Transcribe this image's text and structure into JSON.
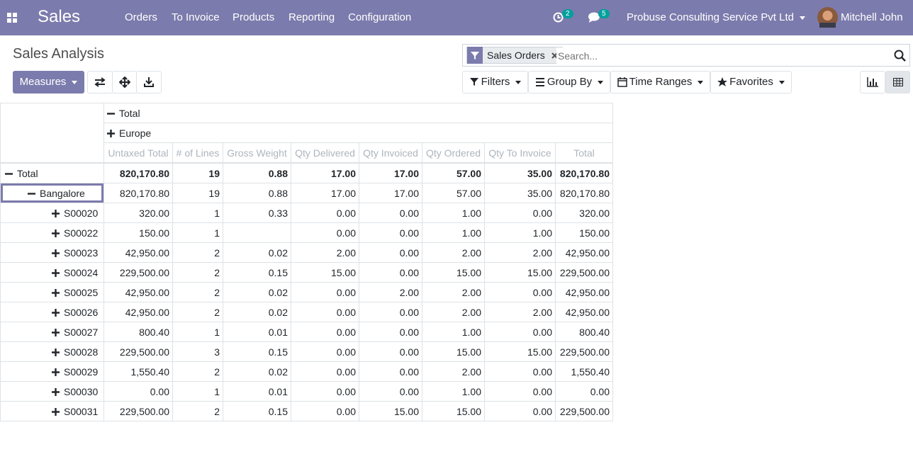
{
  "navbar": {
    "app": "Sales",
    "menu": [
      "Orders",
      "To Invoice",
      "Products",
      "Reporting",
      "Configuration"
    ],
    "activity_count": 2,
    "message_count": 5,
    "company": "Probuse Consulting Service Pvt Ltd",
    "user": "Mitchell John"
  },
  "control_panel": {
    "title": "Sales Analysis",
    "measures_button": "Measures",
    "facet": "Sales Orders",
    "search_placeholder": "Search...",
    "search_buttons": [
      "Filters",
      "Group By",
      "Time Ranges",
      "Favorites"
    ]
  },
  "pivot": {
    "col_headers": [
      "Total",
      "Europe"
    ],
    "measures": [
      "Untaxed Total",
      "# of Lines",
      "Gross Weight",
      "Qty Delivered",
      "Qty Invoiced",
      "Qty Ordered",
      "Qty To Invoice",
      "Total"
    ],
    "rows": [
      {
        "label": "Total",
        "values": [
          "820,170.80",
          "19",
          "0.88",
          "17.00",
          "17.00",
          "57.00",
          "35.00",
          "820,170.80"
        ]
      },
      {
        "label": "Bangalore",
        "values": [
          "820,170.80",
          "19",
          "0.88",
          "17.00",
          "17.00",
          "57.00",
          "35.00",
          "820,170.80"
        ]
      },
      {
        "label": "S00020",
        "values": [
          "320.00",
          "1",
          "0.33",
          "0.00",
          "0.00",
          "1.00",
          "0.00",
          "320.00"
        ]
      },
      {
        "label": "S00022",
        "values": [
          "150.00",
          "1",
          null,
          "0.00",
          "0.00",
          "1.00",
          "1.00",
          "150.00"
        ]
      },
      {
        "label": "S00023",
        "values": [
          "42,950.00",
          "2",
          "0.02",
          "2.00",
          "0.00",
          "2.00",
          "2.00",
          "42,950.00"
        ]
      },
      {
        "label": "S00024",
        "values": [
          "229,500.00",
          "2",
          "0.15",
          "15.00",
          "0.00",
          "15.00",
          "15.00",
          "229,500.00"
        ]
      },
      {
        "label": "S00025",
        "values": [
          "42,950.00",
          "2",
          "0.02",
          "0.00",
          "2.00",
          "2.00",
          "0.00",
          "42,950.00"
        ]
      },
      {
        "label": "S00026",
        "values": [
          "42,950.00",
          "2",
          "0.02",
          "0.00",
          "0.00",
          "2.00",
          "2.00",
          "42,950.00"
        ]
      },
      {
        "label": "S00027",
        "values": [
          "800.40",
          "1",
          "0.01",
          "0.00",
          "0.00",
          "1.00",
          "0.00",
          "800.40"
        ]
      },
      {
        "label": "S00028",
        "values": [
          "229,500.00",
          "3",
          "0.15",
          "0.00",
          "0.00",
          "15.00",
          "15.00",
          "229,500.00"
        ]
      },
      {
        "label": "S00029",
        "values": [
          "1,550.40",
          "2",
          "0.02",
          "0.00",
          "0.00",
          "2.00",
          "0.00",
          "1,550.40"
        ]
      },
      {
        "label": "S00030",
        "values": [
          "0.00",
          "1",
          "0.01",
          "0.00",
          "0.00",
          "1.00",
          "0.00",
          "0.00"
        ]
      },
      {
        "label": "S00031",
        "values": [
          "229,500.00",
          "2",
          "0.15",
          "0.00",
          "15.00",
          "15.00",
          "0.00",
          "229,500.00"
        ]
      }
    ]
  }
}
